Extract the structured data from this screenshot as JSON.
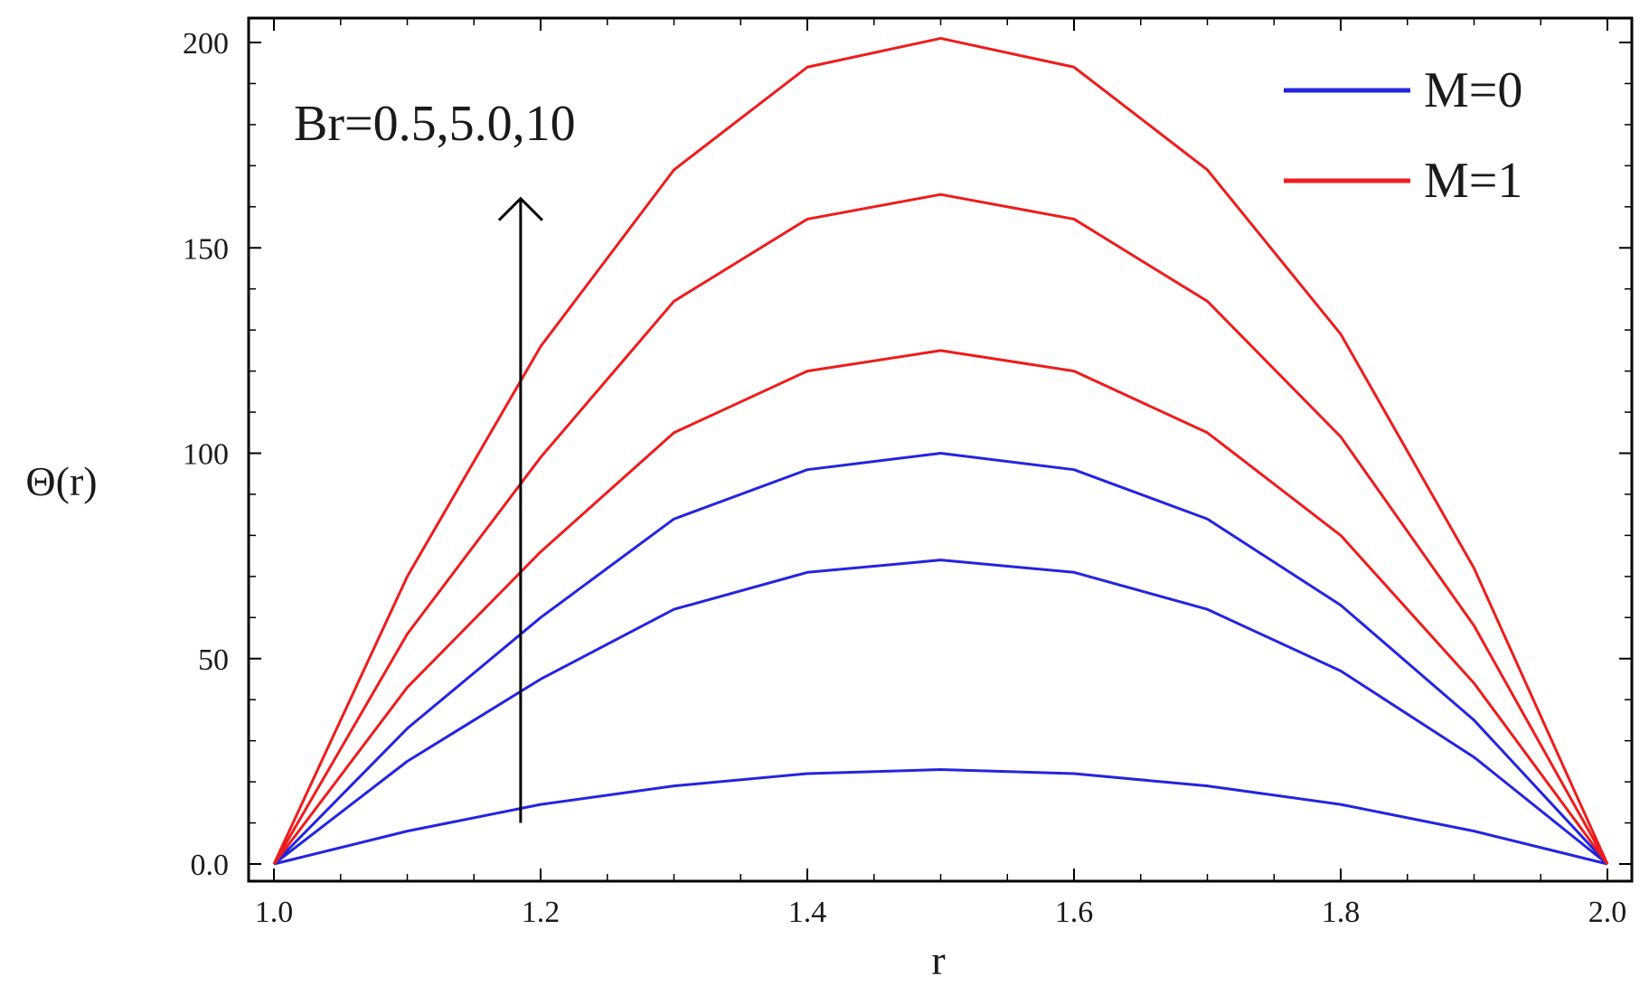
{
  "chart_data": {
    "type": "line",
    "title": "",
    "xlabel": "r",
    "ylabel": "Θ(r)",
    "xlim": [
      1.0,
      2.0
    ],
    "ylim": [
      0,
      200
    ],
    "grid": false,
    "legend_position": "top-right",
    "x_ticks": [
      "1.0",
      "1.2",
      "1.4",
      "1.6",
      "1.8",
      "2.0"
    ],
    "y_ticks": [
      "0.0",
      "50",
      "100",
      "150",
      "200"
    ],
    "x": [
      1.0,
      1.1,
      1.2,
      1.3,
      1.4,
      1.5,
      1.6,
      1.7,
      1.8,
      1.9,
      2.0
    ],
    "series": [
      {
        "group": "M=0",
        "color": "#2424e0",
        "values": [
          0,
          8,
          14.5,
          19,
          22,
          23,
          22,
          19,
          14.5,
          8,
          0
        ]
      },
      {
        "group": "M=0",
        "color": "#2424e0",
        "values": [
          0,
          25,
          45,
          62,
          71,
          74,
          71,
          62,
          47,
          26,
          0
        ]
      },
      {
        "group": "M=0",
        "color": "#2424e0",
        "values": [
          0,
          33,
          60,
          84,
          96,
          100,
          96,
          84,
          63,
          35,
          0
        ]
      },
      {
        "group": "M=1",
        "color": "#ee1c1c",
        "values": [
          0,
          43,
          76,
          105,
          120,
          125,
          120,
          105,
          80,
          44,
          0
        ]
      },
      {
        "group": "M=1",
        "color": "#ee1c1c",
        "values": [
          0,
          56,
          99,
          137,
          157,
          163,
          157,
          137,
          104,
          58,
          0
        ]
      },
      {
        "group": "M=1",
        "color": "#ee1c1c",
        "values": [
          0,
          70,
          126,
          169,
          194,
          201,
          194,
          169,
          129,
          72,
          0
        ]
      }
    ],
    "legend": [
      {
        "label": "M=0",
        "color": "#2424e0"
      },
      {
        "label": "M=1",
        "color": "#ee1c1c"
      }
    ],
    "annotation": {
      "text": "Br=0.5,5.0,10",
      "arrow_x": 1.185,
      "arrow_from_y": 10,
      "arrow_to_y": 162
    }
  }
}
